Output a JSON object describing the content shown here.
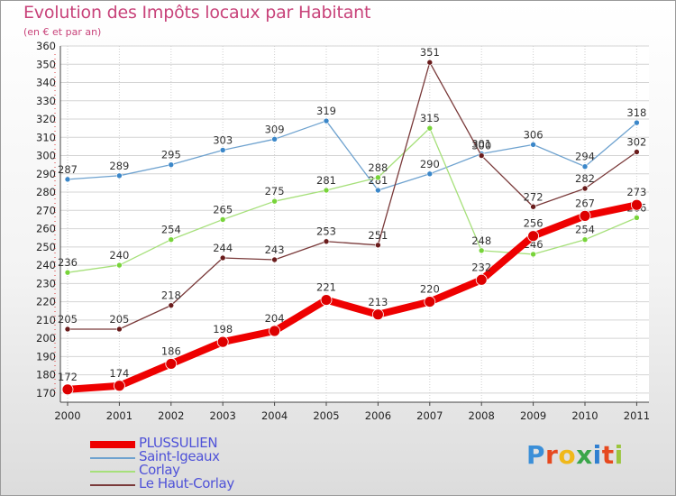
{
  "title": "Evolution des Impôts locaux par Habitant",
  "subtitle": "(en € et par an)",
  "logo_text": "Proxiti",
  "logo_colors": [
    "#3b8fd8",
    "#e6491f",
    "#f0b81a",
    "#3aa64a",
    "#2f7fd0",
    "#e6491f",
    "#9bc53d"
  ],
  "chart_data": {
    "type": "line",
    "title": "Evolution des Impôts locaux par Habitant",
    "subtitle": "(en € et par an)",
    "xlabel": "",
    "ylabel": "",
    "grid": true,
    "ylim": [
      165,
      360
    ],
    "yticks": [
      170,
      180,
      190,
      200,
      210,
      220,
      230,
      240,
      250,
      260,
      270,
      280,
      290,
      300,
      310,
      320,
      330,
      340,
      350,
      360
    ],
    "categories": [
      "2000",
      "2001",
      "2002",
      "2003",
      "2004",
      "2005",
      "2006",
      "2007",
      "2008",
      "2009",
      "2010",
      "2011"
    ],
    "series": [
      {
        "name": "PLUSSULIEN",
        "color": "#ee0000",
        "marker_color": "#dd0000",
        "emphasis": true,
        "values": [
          172,
          174,
          186,
          198,
          204,
          221,
          213,
          220,
          232,
          256,
          267,
          273
        ]
      },
      {
        "name": "Saint-Igeaux",
        "color": "#6ea2cf",
        "marker_color": "#3b87c9",
        "emphasis": false,
        "values": [
          287,
          289,
          295,
          303,
          309,
          319,
          281,
          290,
          301,
          306,
          294,
          318
        ]
      },
      {
        "name": "Corlay",
        "color": "#a6e07a",
        "marker_color": "#78d43a",
        "emphasis": false,
        "values": [
          236,
          240,
          254,
          265,
          275,
          281,
          288,
          315,
          248,
          246,
          254,
          266
        ]
      },
      {
        "name": "Le Haut-Corlay",
        "color": "#7a3a3a",
        "marker_color": "#6a1c1c",
        "emphasis": false,
        "values": [
          205,
          205,
          218,
          244,
          243,
          253,
          251,
          351,
          300,
          272,
          282,
          302
        ]
      }
    ],
    "legend_position": "bottom-left"
  }
}
